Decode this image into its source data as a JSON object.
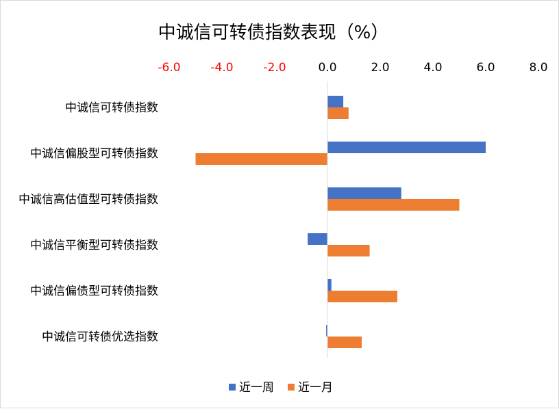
{
  "chart_data": {
    "type": "bar",
    "orientation": "horizontal",
    "title": "中诚信可转债指数表现（%）",
    "xlim": [
      -6.0,
      8.0
    ],
    "xticks": [
      "-6.0",
      "-4.0",
      "-2.0",
      "0.0",
      "2.0",
      "4.0",
      "6.0",
      "8.0"
    ],
    "x_axis_position": "top",
    "negative_tick_color": "#ff0000",
    "positive_tick_color": "#000000",
    "grid": false,
    "legend_position": "bottom",
    "categories": [
      "中诚信可转债指数",
      "中诚信偏股型可转债指数",
      "中诚信高估值型可转债指数",
      "中诚信平衡型可转债指数",
      "中诚信偏债型可转债指数",
      "中诚信可转债优选指数"
    ],
    "series": [
      {
        "name": "近一周",
        "color": "#4472c4",
        "values": [
          0.6,
          6.0,
          2.8,
          -0.75,
          0.15,
          -0.05
        ]
      },
      {
        "name": "近一月",
        "color": "#ed7d31",
        "values": [
          0.8,
          -5.0,
          5.0,
          1.6,
          2.65,
          1.3
        ]
      }
    ]
  }
}
